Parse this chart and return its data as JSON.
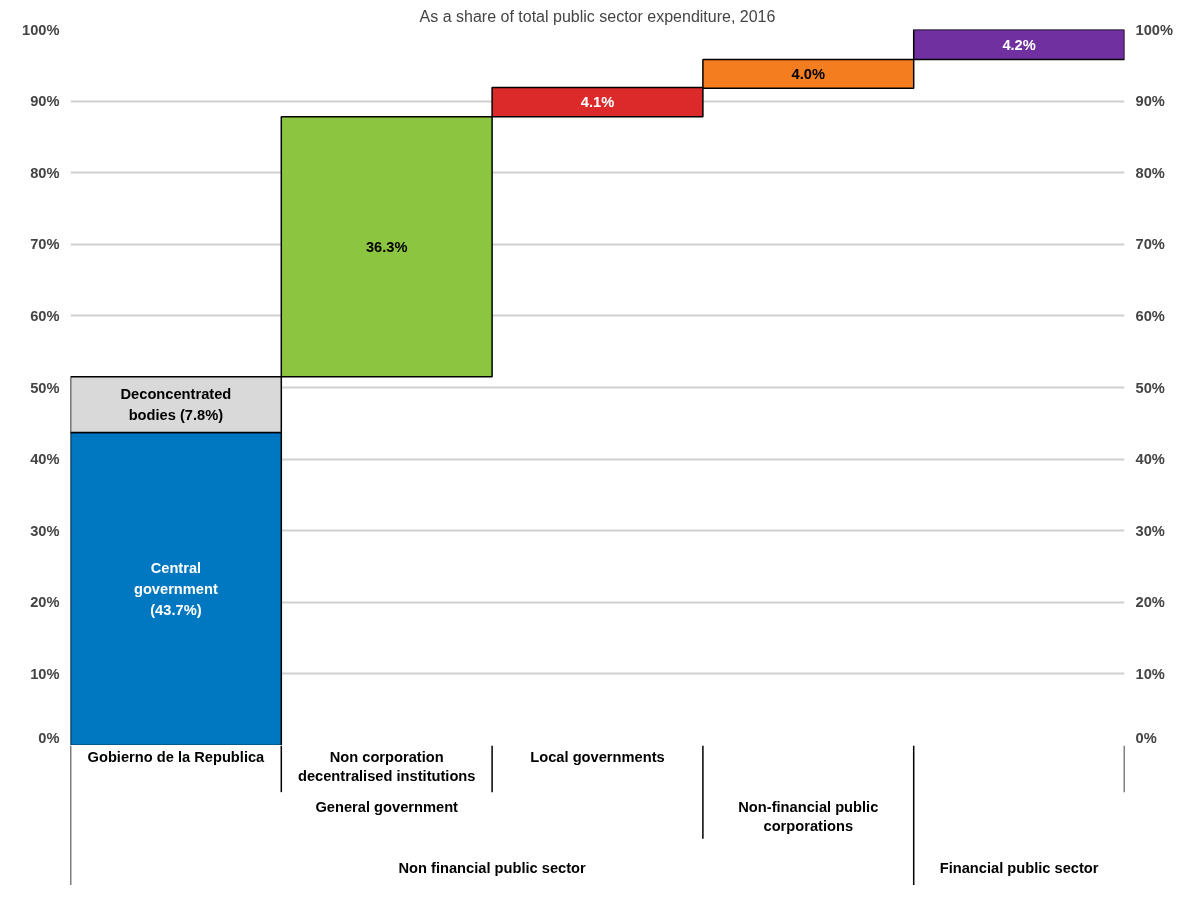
{
  "chart_data": {
    "type": "bar",
    "title": "As a share of total public sector expenditure, 2016",
    "categories": [
      "Gobierno de la Republica",
      "Non corporation decentralised institutions",
      "Local governments",
      null,
      null
    ],
    "series": [
      {
        "colors": [
          "#0078c1",
          null,
          null,
          null,
          null
        ],
        "values": [
          43.7,
          null,
          null,
          null,
          null
        ],
        "base": [
          0,
          null,
          null,
          null,
          null
        ],
        "value_labels": [
          "Central government (43.7%)",
          null,
          null,
          null,
          null
        ]
      },
      {
        "colors": [
          "#d9d9d9",
          "#8cc641",
          "#dc2a2a",
          "#f47d20",
          "#7030a0"
        ],
        "values": [
          7.8,
          36.3,
          4.1,
          4.0,
          4.2
        ],
        "base": [
          43.7,
          51.5,
          87.8,
          91.8,
          95.8
        ],
        "value_labels": [
          "Deconcentrated bodies (7.8%)",
          "36.3%",
          "4.1%",
          "4.0%",
          "4.2%"
        ]
      }
    ],
    "ylim": [
      0,
      100
    ],
    "yticks": [
      {
        "value": 0,
        "label": "0%"
      },
      {
        "value": 10,
        "label": "10%"
      },
      {
        "value": 20,
        "label": "20%"
      },
      {
        "value": 30,
        "label": "30%"
      },
      {
        "value": 40,
        "label": "40%"
      },
      {
        "value": 50,
        "label": "50%"
      },
      {
        "value": 60,
        "label": "60%"
      },
      {
        "value": 70,
        "label": "70%"
      },
      {
        "value": 80,
        "label": "80%"
      },
      {
        "value": 90,
        "label": "90%"
      },
      {
        "value": 100,
        "label": "100%"
      }
    ],
    "y2lim": [
      0,
      100
    ],
    "y2ticks": [
      {
        "value": 0,
        "label": "0%"
      },
      {
        "value": 10,
        "label": "10%"
      },
      {
        "value": 20,
        "label": "20%"
      },
      {
        "value": 30,
        "label": "30%"
      },
      {
        "value": 40,
        "label": "40%"
      },
      {
        "value": 50,
        "label": "50%"
      },
      {
        "value": 60,
        "label": "60%"
      },
      {
        "value": 70,
        "label": "70%"
      },
      {
        "value": 80,
        "label": "80%"
      },
      {
        "value": 90,
        "label": "90%"
      },
      {
        "value": 100,
        "label": "100%"
      }
    ],
    "grid": "y",
    "annotations": [
      "General government",
      "Non-financial public corporations",
      "Non financial public sector",
      "Financial public sector"
    ]
  }
}
